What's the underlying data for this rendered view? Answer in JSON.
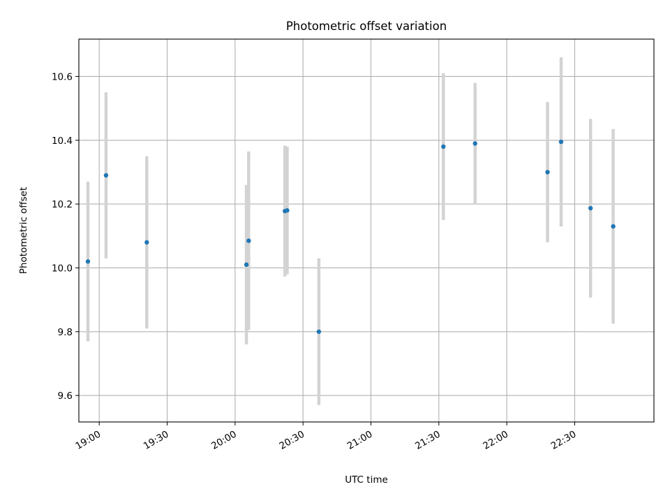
{
  "chart_data": {
    "type": "scatter",
    "title": "Photometric offset variation",
    "xlabel": "UTC time",
    "ylabel": "Photometric offset",
    "xlim": [
      "18:51",
      "23:05"
    ],
    "ylim": [
      9.517,
      10.717
    ],
    "xticks": [
      "19:00",
      "19:30",
      "20:00",
      "20:30",
      "21:00",
      "21:30",
      "22:00",
      "22:30"
    ],
    "yticks": [
      "9.6",
      "9.8",
      "10.0",
      "10.2",
      "10.4",
      "10.6"
    ],
    "grid": true,
    "points": [
      {
        "time": "18:55",
        "y": 10.02,
        "err": 0.25
      },
      {
        "time": "19:03",
        "y": 10.29,
        "err": 0.26
      },
      {
        "time": "19:21",
        "y": 10.08,
        "err": 0.27
      },
      {
        "time": "20:05",
        "y": 10.01,
        "err": 0.25
      },
      {
        "time": "20:06",
        "y": 10.085,
        "err": 0.28
      },
      {
        "time": "20:22",
        "y": 10.178,
        "err": 0.205
      },
      {
        "time": "20:23",
        "y": 10.18,
        "err": 0.2
      },
      {
        "time": "20:37",
        "y": 9.8,
        "err": 0.23
      },
      {
        "time": "21:32",
        "y": 10.38,
        "err": 0.23
      },
      {
        "time": "21:46",
        "y": 10.39,
        "err": 0.19
      },
      {
        "time": "22:18",
        "y": 10.3,
        "err": 0.22
      },
      {
        "time": "22:24",
        "y": 10.395,
        "err": 0.265
      },
      {
        "time": "22:37",
        "y": 10.187,
        "err": 0.28
      },
      {
        "time": "22:47",
        "y": 10.13,
        "err": 0.305
      }
    ]
  },
  "colors": {
    "point": "#1f77b4",
    "errorbar": "#d3d3d3",
    "grid": "#b0b0b0"
  }
}
